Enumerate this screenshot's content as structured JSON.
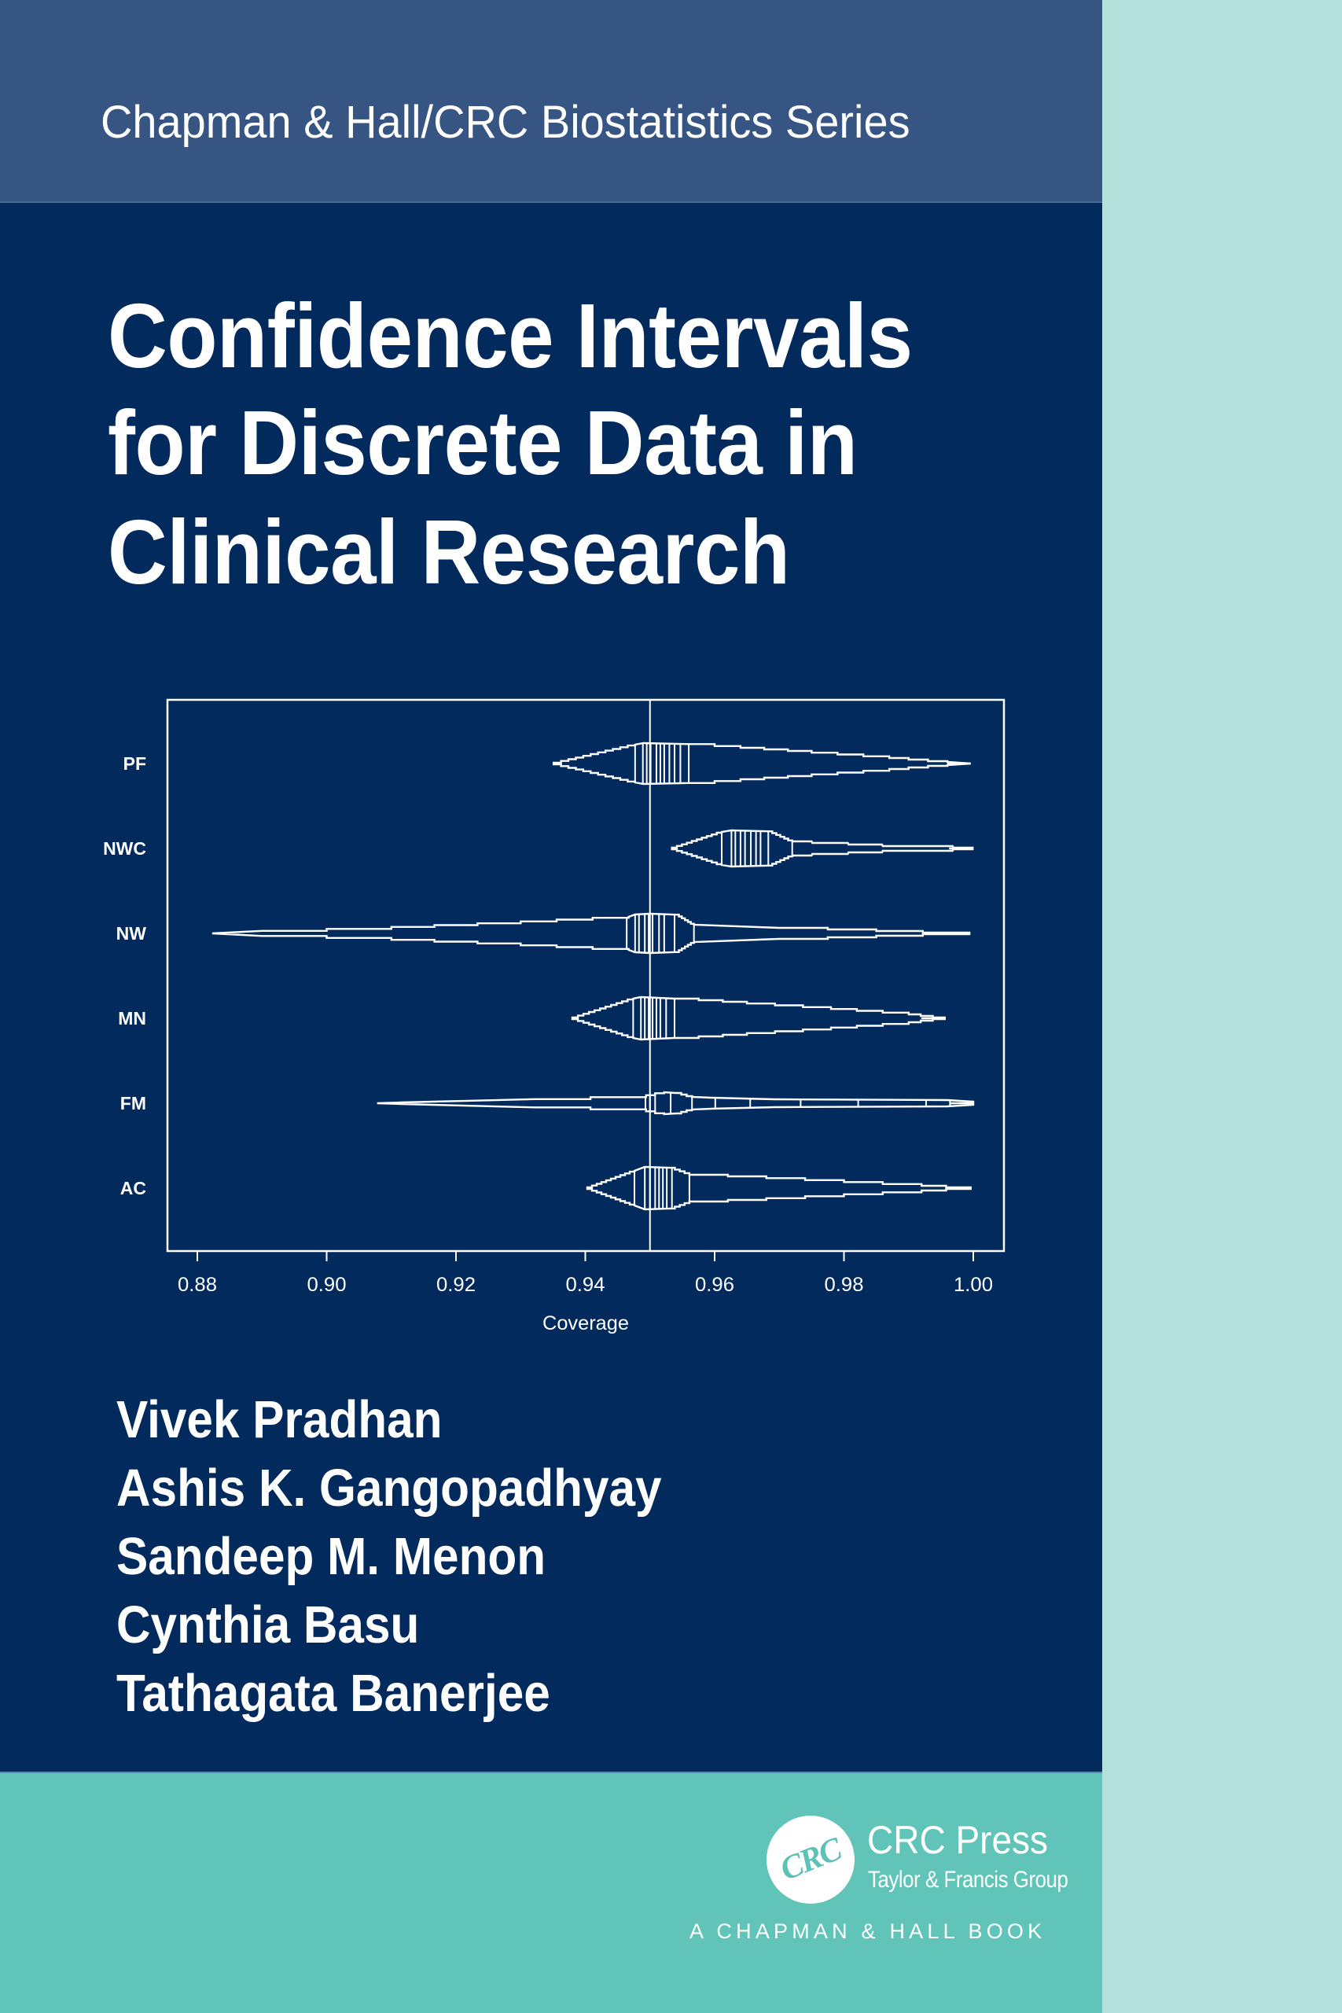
{
  "cover": {
    "colors": {
      "top_band": "#365583",
      "main_panel": "#032a5d",
      "bottom_band": "#60c4b9",
      "right_strip": "#b3e0da",
      "text": "#ffffff",
      "logo_teal": "#5cc1b6"
    },
    "series": "Chapman & Hall/CRC Biostatistics Series",
    "title_lines": [
      "Confidence Intervals",
      "for Discrete Data in",
      "Clinical Research"
    ],
    "authors": [
      "Vivek Pradhan",
      "Ashis K. Gangopadhyay",
      "Sandeep M. Menon",
      "Cynthia Basu",
      "Tathagata Banerjee"
    ],
    "publisher": {
      "logo_text": "CRC",
      "name": "CRC Press",
      "group": "Taylor & Francis Group",
      "imprint": "A CHAPMAN & HALL BOOK"
    }
  },
  "chart_data": {
    "type": "violin",
    "title": "",
    "xlabel": "Coverage",
    "ylabel": "",
    "xlim": [
      0.88,
      1.0
    ],
    "x_ticks": [
      "0.88",
      "0.90",
      "0.92",
      "0.94",
      "0.96",
      "0.98",
      "1.00"
    ],
    "x_tick_values": [
      0.88,
      0.9,
      0.92,
      0.94,
      0.96,
      0.98,
      1.0
    ],
    "reference_line": 0.95,
    "grid": false,
    "legend": null,
    "categories": [
      "PF",
      "NWC",
      "NW",
      "MN",
      "FM",
      "AC"
    ],
    "series": [
      {
        "name": "PF",
        "min": 0.935,
        "max": 1.0,
        "profile": [
          [
            0.9351,
            0
          ],
          [
            0.9477,
            24
          ],
          [
            0.949,
            26
          ],
          [
            0.956,
            26
          ],
          [
            0.964,
            21
          ],
          [
            0.975,
            15
          ],
          [
            0.987,
            8
          ],
          [
            0.996,
            2
          ],
          [
            0.9996,
            0
          ]
        ],
        "dividers": [
          0.9477,
          0.9489,
          0.9495,
          0.9501,
          0.951,
          0.9516,
          0.9522,
          0.953,
          0.9538,
          0.9547,
          0.956
        ]
      },
      {
        "name": "NWC",
        "min": 0.953,
        "max": 1.0,
        "profile": [
          [
            0.9534,
            0
          ],
          [
            0.9611,
            21
          ],
          [
            0.9626,
            23
          ],
          [
            0.9683,
            23
          ],
          [
            0.972,
            9
          ],
          [
            0.975,
            9
          ],
          [
            0.9751,
            7
          ],
          [
            0.9806,
            7
          ],
          [
            0.9807,
            5
          ],
          [
            0.9859,
            5
          ],
          [
            0.986,
            3
          ],
          [
            0.9968,
            3
          ],
          [
            0.9969,
            1
          ],
          [
            0.9999,
            1
          ]
        ],
        "dividers": [
          0.9611,
          0.9626,
          0.9632,
          0.964,
          0.9647,
          0.9656,
          0.9664,
          0.9671,
          0.9683,
          0.972
        ]
      },
      {
        "name": "NW",
        "min": 0.882,
        "max": 0.999,
        "profile": [
          [
            0.8823,
            0
          ],
          [
            0.89,
            2
          ],
          [
            0.91,
            7
          ],
          [
            0.93,
            14
          ],
          [
            0.9467,
            21
          ],
          [
            0.9477,
            24
          ],
          [
            0.95,
            25
          ],
          [
            0.954,
            25
          ],
          [
            0.9568,
            11
          ],
          [
            0.97,
            8
          ],
          [
            0.985,
            4
          ],
          [
            0.9994,
            0
          ]
        ],
        "dividers": [
          0.9464,
          0.9477,
          0.9483,
          0.9492,
          0.9498,
          0.9504,
          0.9514,
          0.9522,
          0.9538,
          0.9568
        ]
      },
      {
        "name": "MN",
        "min": 0.938,
        "max": 0.996,
        "profile": [
          [
            0.938,
            0
          ],
          [
            0.9474,
            25
          ],
          [
            0.9486,
            27
          ],
          [
            0.9538,
            26
          ],
          [
            0.965,
            20
          ],
          [
            0.978,
            13
          ],
          [
            0.99,
            6
          ],
          [
            0.9956,
            0
          ]
        ],
        "dividers": [
          0.9474,
          0.9486,
          0.9492,
          0.9498,
          0.9504,
          0.951,
          0.9516,
          0.9525,
          0.9538
        ]
      },
      {
        "name": "FM",
        "min": 0.908,
        "max": 1.0,
        "profile": [
          [
            0.9078,
            0
          ],
          [
            0.9115,
            1
          ],
          [
            0.9322,
            4
          ],
          [
            0.9494,
            9
          ],
          [
            0.9522,
            14
          ],
          [
            0.954,
            14
          ],
          [
            0.9565,
            8
          ],
          [
            0.9595,
            7
          ],
          [
            0.9692,
            5
          ],
          [
            0.996,
            4
          ],
          [
            1.0,
            2
          ]
        ],
        "dividers": [
          0.9493,
          0.95,
          0.9508,
          0.9532,
          0.9565,
          0.9601,
          0.9655,
          0.9733,
          0.9822,
          0.9927,
          0.9964
        ]
      },
      {
        "name": "AC",
        "min": 0.94,
        "max": 1.0,
        "profile": [
          [
            0.9403,
            0
          ],
          [
            0.9476,
            22
          ],
          [
            0.9492,
            27
          ],
          [
            0.9531,
            27
          ],
          [
            0.9561,
            18
          ],
          [
            0.968,
            14
          ],
          [
            0.98,
            9
          ],
          [
            0.992,
            4
          ],
          [
            0.9996,
            0
          ]
        ],
        "dividers": [
          0.9476,
          0.9492,
          0.95,
          0.9508,
          0.9514,
          0.952,
          0.9526,
          0.9534,
          0.9561
        ]
      }
    ]
  }
}
